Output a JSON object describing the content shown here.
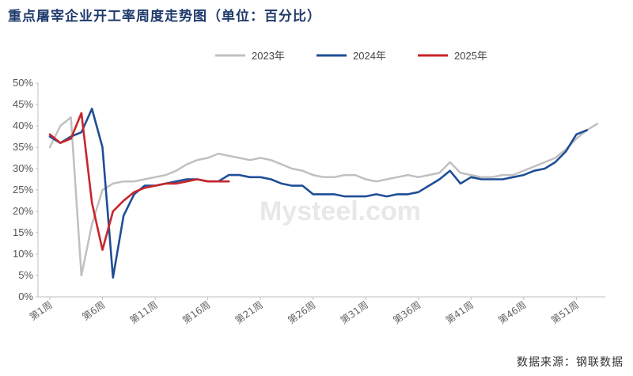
{
  "title": "重点屠宰企业开工率周度走势图（单位：百分比）",
  "source": "数据来源：钢联数据",
  "watermark": "Mysteel.com",
  "chart_data": {
    "type": "line",
    "title": "重点屠宰企业开工率周度走势图（单位：百分比）",
    "unit": "百分比",
    "x_axis": {
      "min": 1,
      "max": 53,
      "tick_values": [
        1,
        6,
        11,
        16,
        21,
        26,
        31,
        36,
        41,
        46,
        51
      ],
      "tick_labels": [
        "第1周",
        "第6周",
        "第11周",
        "第16周",
        "第21周",
        "第26周",
        "第31周",
        "第36周",
        "第41周",
        "第46周",
        "第51周"
      ]
    },
    "y_axis": {
      "min": 0,
      "max": 50,
      "step": 5,
      "tick_labels": [
        "0%",
        "5%",
        "10%",
        "15%",
        "20%",
        "25%",
        "30%",
        "35%",
        "40%",
        "45%",
        "50%"
      ]
    },
    "grid": false,
    "legend": "top",
    "series": [
      {
        "name": "2023年",
        "color": "#c0c0c0",
        "x": [
          1,
          2,
          3,
          4,
          5,
          6,
          7,
          8,
          9,
          10,
          11,
          12,
          13,
          14,
          15,
          16,
          17,
          18,
          19,
          20,
          21,
          22,
          23,
          24,
          25,
          26,
          27,
          28,
          29,
          30,
          31,
          32,
          33,
          34,
          35,
          36,
          37,
          38,
          39,
          40,
          41,
          42,
          43,
          44,
          45,
          46,
          47,
          48,
          49,
          50,
          51,
          52,
          53
        ],
        "values": [
          35,
          40,
          42,
          5,
          17,
          25,
          26.5,
          27,
          27,
          27.5,
          28,
          28.5,
          29.5,
          31,
          32,
          32.5,
          33.5,
          33,
          32.5,
          32,
          32.5,
          32,
          31,
          30,
          29.5,
          28.5,
          28,
          28,
          28.5,
          28.5,
          27.5,
          27,
          27.5,
          28,
          28.5,
          28,
          28.5,
          29,
          31.5,
          29,
          28.5,
          28,
          28,
          28.5,
          28.5,
          29.5,
          30.5,
          31.5,
          32.5,
          34.5,
          37,
          39,
          40.5
        ]
      },
      {
        "name": "2024年",
        "color": "#1f4e96",
        "x": [
          1,
          2,
          3,
          4,
          5,
          6,
          7,
          8,
          9,
          10,
          11,
          12,
          13,
          14,
          15,
          16,
          17,
          18,
          19,
          20,
          21,
          22,
          23,
          24,
          25,
          26,
          27,
          28,
          29,
          30,
          31,
          32,
          33,
          34,
          35,
          36,
          37,
          38,
          39,
          40,
          41,
          42,
          43,
          44,
          45,
          46,
          47,
          48,
          49,
          50,
          51,
          52
        ],
        "values": [
          37.5,
          36,
          37.5,
          38.5,
          44,
          35,
          4.5,
          19,
          24,
          26,
          26,
          26.5,
          27,
          27.5,
          27.5,
          27,
          27,
          28.5,
          28.5,
          28,
          28,
          27.5,
          26.5,
          26,
          26,
          24,
          24,
          24,
          23.5,
          23.5,
          23.5,
          24,
          23.5,
          24,
          24,
          24.5,
          26,
          27.5,
          29.5,
          26.5,
          28,
          27.5,
          27.5,
          27.5,
          28,
          28.5,
          29.5,
          30,
          31.5,
          34,
          38,
          39
        ]
      },
      {
        "name": "2025年",
        "color": "#c8252a",
        "x": [
          1,
          2,
          3,
          4,
          5,
          6,
          7,
          8,
          9,
          10,
          11,
          12,
          13,
          14,
          15,
          16,
          17,
          18
        ],
        "values": [
          38,
          36,
          37,
          43,
          22,
          11,
          20,
          22.5,
          24.5,
          25.5,
          26,
          26.5,
          26.5,
          27,
          27.5,
          27,
          27,
          27
        ]
      }
    ]
  }
}
